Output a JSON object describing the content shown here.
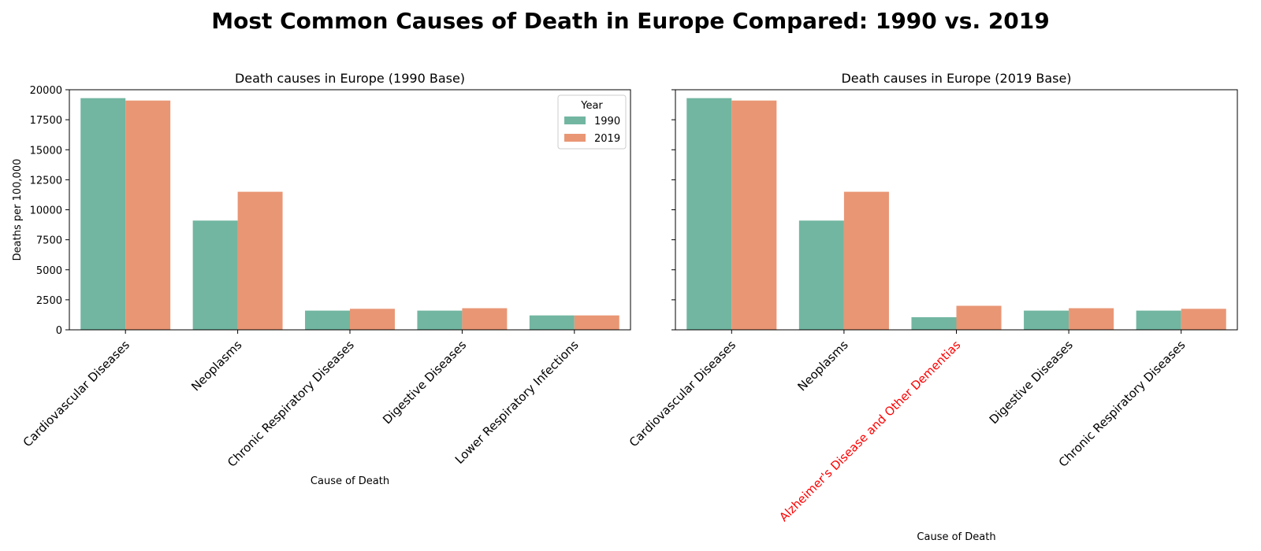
{
  "suptitle": "Most Common Causes of Death in Europe Compared: 1990 vs. 2019",
  "colors": {
    "y1990": "#72b6a1",
    "y2019": "#e99675",
    "highlight": "#ff0000"
  },
  "chart_data": [
    {
      "type": "bar",
      "title": "Death causes in Europe (1990 Base)",
      "xlabel": "Cause of Death",
      "ylabel": "Deaths per 100,000",
      "ylim": [
        0,
        20000
      ],
      "yticks": [
        0,
        2500,
        5000,
        7500,
        10000,
        12500,
        15000,
        17500,
        20000
      ],
      "categories": [
        "Cardiovascular Diseases",
        "Neoplasms",
        "Chronic Respiratory Diseases",
        "Digestive Diseases",
        "Lower Respiratory Infections"
      ],
      "highlighted_categories": [],
      "series": [
        {
          "name": "1990",
          "values": [
            19300,
            9100,
            1600,
            1600,
            1200
          ]
        },
        {
          "name": "2019",
          "values": [
            19100,
            11500,
            1750,
            1800,
            1200
          ]
        }
      ],
      "legend": {
        "title": "Year",
        "placement": "upper right"
      }
    },
    {
      "type": "bar",
      "title": "Death causes in Europe (2019 Base)",
      "xlabel": "Cause of Death",
      "ylabel": "",
      "ylim": [
        0,
        20000
      ],
      "yticks": [
        0,
        2500,
        5000,
        7500,
        10000,
        12500,
        15000,
        17500,
        20000
      ],
      "categories": [
        "Cardiovascular Diseases",
        "Neoplasms",
        "Alzheimer's Disease and Other Dementias",
        "Digestive Diseases",
        "Chronic Respiratory Diseases"
      ],
      "highlighted_categories": [
        "Alzheimer's Disease and Other Dementias"
      ],
      "series": [
        {
          "name": "1990",
          "values": [
            19300,
            9100,
            1050,
            1600,
            1600
          ]
        },
        {
          "name": "2019",
          "values": [
            19100,
            11500,
            2000,
            1800,
            1750
          ]
        }
      ]
    }
  ]
}
